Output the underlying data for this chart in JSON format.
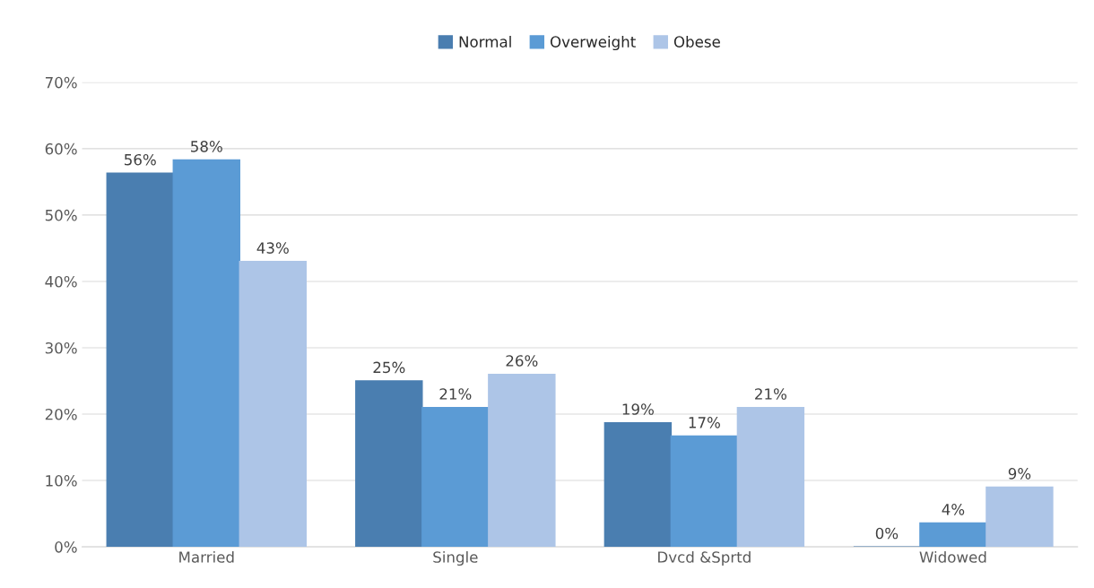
{
  "chart_data": {
    "type": "bar",
    "categories": [
      "Married",
      "Single",
      "Dvcd &Sprtd",
      "Widowed"
    ],
    "series": [
      {
        "name": "Normal",
        "color": "#4a7eb0",
        "values": [
          56.3,
          25,
          18.7,
          0
        ],
        "value_labels": [
          "56%",
          "25%",
          "19%",
          "0%"
        ]
      },
      {
        "name": "Overweight",
        "color": "#5b9bd5",
        "values": [
          58.3,
          21,
          16.7,
          3.6
        ],
        "value_labels": [
          "58%",
          "21%",
          "17%",
          "4%"
        ]
      },
      {
        "name": "Obese",
        "color": "#adc5e7",
        "values": [
          43,
          26,
          21,
          9
        ],
        "value_labels": [
          "43%",
          "26%",
          "21%",
          "9%"
        ]
      }
    ],
    "ylim": [
      0,
      70
    ],
    "yticks": [
      {
        "value": 0,
        "label": "0%"
      },
      {
        "value": 10,
        "label": "10%"
      },
      {
        "value": 20,
        "label": "20%"
      },
      {
        "value": 30,
        "label": "30%"
      },
      {
        "value": 40,
        "label": "40%"
      },
      {
        "value": 50,
        "label": "50%"
      },
      {
        "value": 60,
        "label": "60%"
      },
      {
        "value": 70,
        "label": "70%"
      }
    ],
    "grid": "y",
    "legend": "top"
  }
}
